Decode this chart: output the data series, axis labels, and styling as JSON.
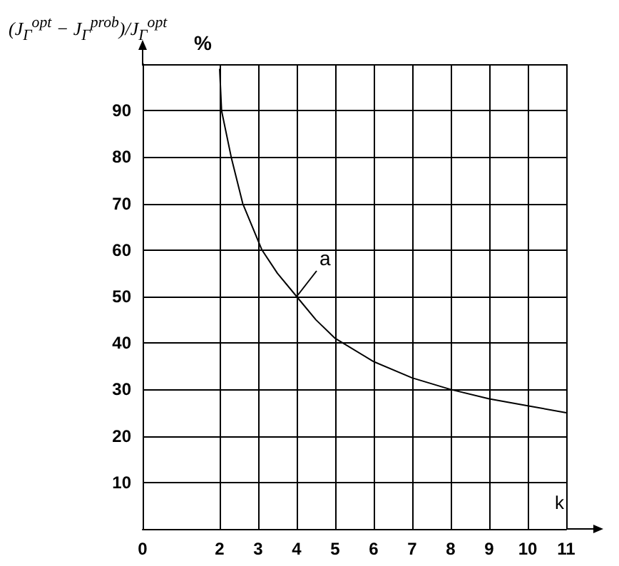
{
  "chart_data": {
    "type": "line",
    "ylabel": "(J$_{Γ}$$^{opt}$ − J$_{Γ}$$^{prob}$)/J$_{Γ}$$^{opt}$",
    "xlabel": "k",
    "x": [
      2,
      2.05,
      2.3,
      2.6,
      3,
      3.1,
      3.5,
      4,
      4.5,
      5,
      6,
      7,
      8,
      9,
      10,
      11
    ],
    "series": [
      {
        "color": "#000000",
        "values": [
          99,
          90,
          80,
          70,
          62,
          60,
          55,
          50,
          45,
          41,
          36,
          32.5,
          30,
          28,
          26.5,
          25
        ]
      }
    ],
    "xlim": [
      0,
      11
    ],
    "xticks": [
      0,
      2,
      3,
      4,
      5,
      6,
      7,
      8,
      9,
      10,
      11
    ],
    "ylim": [
      0,
      100
    ],
    "yticks": [
      10,
      20,
      30,
      40,
      50,
      60,
      70,
      80,
      90,
      {
        "value": 100,
        "label": null
      }
    ],
    "grid": true,
    "marker": "none",
    "line_style": "solid",
    "annotations": [
      "%",
      {
        "text": "a",
        "x": 4,
        "y": 50
      }
    ]
  }
}
